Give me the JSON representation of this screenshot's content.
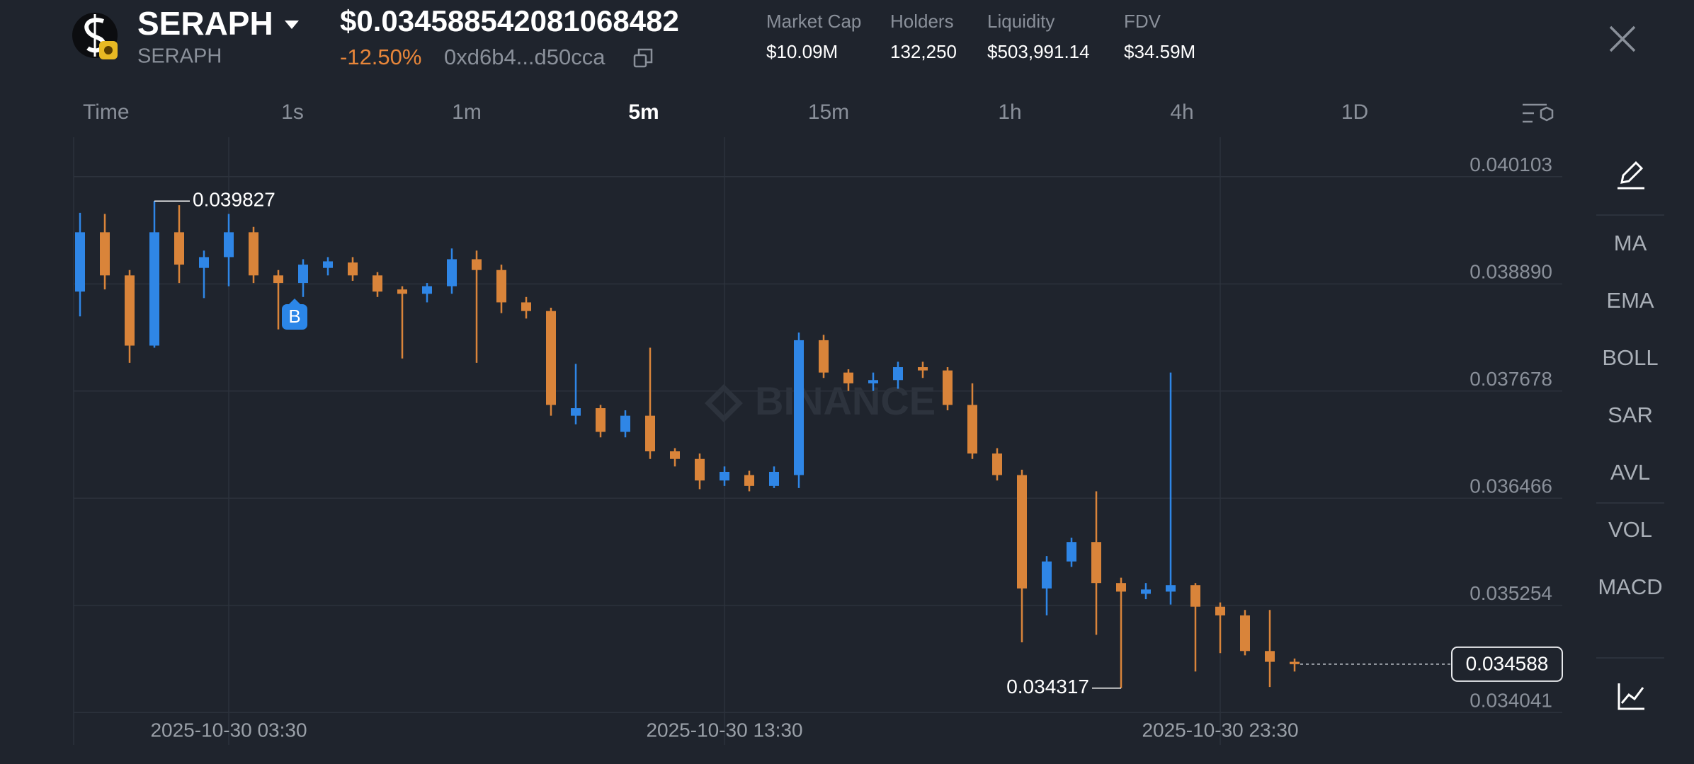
{
  "header": {
    "token_name": "SERAPH",
    "token_symbol": "SERAPH",
    "price": "$0.034588542081068482",
    "change": "-12.50%",
    "address": "0xd6b4...d50cca",
    "stats": [
      {
        "label": "Market Cap",
        "value": "$10.09M"
      },
      {
        "label": "Holders",
        "value": "132,250"
      },
      {
        "label": "Liquidity",
        "value": "$503,991.14"
      },
      {
        "label": "FDV",
        "value": "$34.59M"
      }
    ]
  },
  "intervals": [
    "Time",
    "1s",
    "1m",
    "5m",
    "15m",
    "1h",
    "4h",
    "1D"
  ],
  "active_interval": "5m",
  "indicators": [
    "MA",
    "EMA",
    "BOLL",
    "SAR",
    "AVL",
    "VOL",
    "MACD"
  ],
  "trade_marker": "B",
  "watermark": "BINANCE",
  "chart_data": {
    "type": "candlestick",
    "categories": [
      null,
      null,
      null,
      null,
      null,
      null,
      "2025-10-30 03:30",
      null,
      null,
      null,
      null,
      null,
      null,
      null,
      null,
      null,
      null,
      null,
      null,
      null,
      null,
      null,
      null,
      null,
      null,
      null,
      "2025-10-30 13:30",
      null,
      null,
      null,
      null,
      null,
      null,
      null,
      null,
      null,
      null,
      null,
      null,
      null,
      null,
      null,
      null,
      null,
      null,
      null,
      "2025-10-30 23:30",
      null,
      null,
      null
    ],
    "open": [
      0.038803,
      0.039474,
      0.038986,
      0.038192,
      0.039474,
      0.039071,
      0.039193,
      0.039474,
      0.038986,
      0.0389,
      0.039071,
      0.039132,
      0.038986,
      0.038827,
      0.038778,
      0.038864,
      0.039169,
      0.039047,
      0.038681,
      0.038583,
      0.037399,
      0.037484,
      0.037216,
      0.037399,
      0.036996,
      0.03691,
      0.036666,
      0.036727,
      0.036605,
      0.036727,
      0.038253,
      0.037887,
      0.037765,
      0.037802,
      0.037948,
      0.037911,
      0.037521,
      0.036971,
      0.036727,
      0.035445,
      0.03575,
      0.03597,
      0.035506,
      0.035384,
      0.035409,
      0.035482,
      0.035238,
      0.03514,
      0.034737,
      0.034615
    ],
    "high": [
      0.039694,
      0.039682,
      0.039047,
      0.039827,
      0.03978,
      0.039267,
      0.039682,
      0.039535,
      0.039047,
      0.039169,
      0.039193,
      0.039193,
      0.039023,
      0.038864,
      0.0389,
      0.039291,
      0.039267,
      0.039108,
      0.038742,
      0.03862,
      0.037985,
      0.037521,
      0.03746,
      0.038168,
      0.037032,
      0.036971,
      0.036825,
      0.036776,
      0.036825,
      0.038339,
      0.038314,
      0.037924,
      0.037887,
      0.038009,
      0.038009,
      0.037948,
      0.037765,
      0.037032,
      0.036788,
      0.035811,
      0.036019,
      0.036544,
      0.035567,
      0.035506,
      0.037887,
      0.035506,
      0.035286,
      0.035201,
      0.035201,
      0.034652
    ],
    "low": [
      0.038522,
      0.038827,
      0.037997,
      0.038168,
      0.0389,
      0.038729,
      0.038864,
      0.0389,
      0.038375,
      0.038742,
      0.038986,
      0.038925,
      0.038742,
      0.038046,
      0.038681,
      0.038778,
      0.037997,
      0.038559,
      0.038498,
      0.037399,
      0.037301,
      0.037154,
      0.037154,
      0.03691,
      0.036825,
      0.036568,
      0.036605,
      0.036544,
      0.036581,
      0.036581,
      0.037826,
      0.037679,
      0.037679,
      0.037704,
      0.037826,
      0.03746,
      0.03691,
      0.036666,
      0.034835,
      0.03514,
      0.035689,
      0.03492,
      0.034317,
      0.035323,
      0.035262,
      0.034505,
      0.034713,
      0.034688,
      0.03433,
      0.034505
    ],
    "close": [
      0.039474,
      0.038986,
      0.038192,
      0.039474,
      0.039108,
      0.039193,
      0.039474,
      0.038986,
      0.0389,
      0.039108,
      0.039145,
      0.038986,
      0.038803,
      0.038778,
      0.038864,
      0.039169,
      0.039047,
      0.038681,
      0.038583,
      0.037521,
      0.037484,
      0.037216,
      0.037399,
      0.036996,
      0.03691,
      0.036666,
      0.036764,
      0.036605,
      0.036764,
      0.038253,
      0.037887,
      0.037765,
      0.037802,
      0.037948,
      0.037911,
      0.037521,
      0.036971,
      0.036727,
      0.035445,
      0.03575,
      0.03597,
      0.035506,
      0.035409,
      0.035433,
      0.035482,
      0.035238,
      0.03514,
      0.034737,
      0.034615,
      0.034588
    ],
    "up_color": "#2f86e6",
    "down_color": "#d9843a",
    "ylim": [
      0.033675,
      0.040549
    ],
    "yticks": [
      0.040103,
      {
        "value": 0.03889,
        "label": "0.038890"
      },
      0.037678,
      0.036466,
      0.035254,
      0.034041
    ],
    "grid": true
  }
}
